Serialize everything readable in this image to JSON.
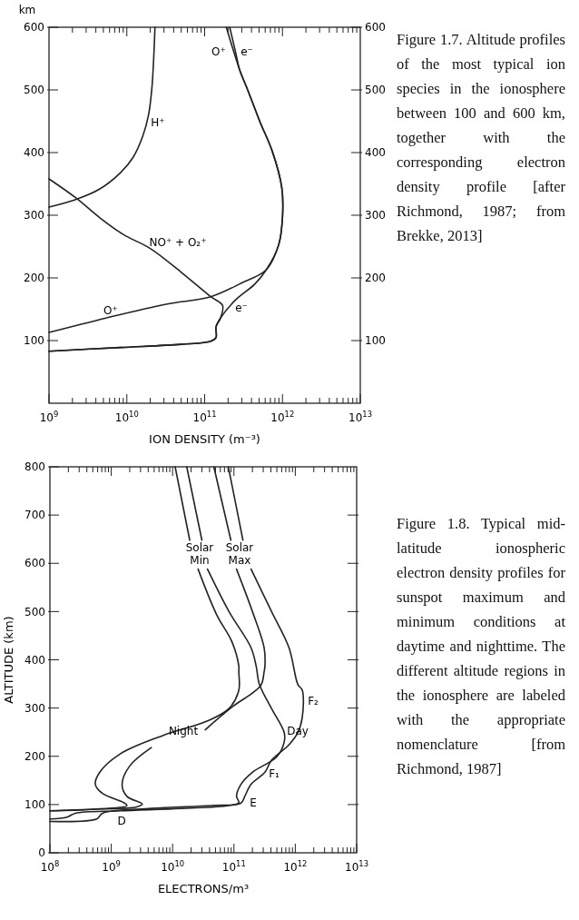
{
  "chart_data": [
    {
      "type": "line",
      "log": "x",
      "ylabel": "km",
      "xlabel": "ION DENSITY (m⁻³)",
      "xlim": [
        1000000000.0,
        10000000000000.0
      ],
      "ylim": [
        0,
        600
      ],
      "y2lim": [
        0,
        600
      ],
      "xticks": [
        {
          "value": 1000000000.0,
          "label": "10$^{9}$"
        },
        {
          "value": 10000000000.0,
          "label": "10$^{10}$"
        },
        {
          "value": 100000000000.0,
          "label": "10$^{11}$"
        },
        {
          "value": 1000000000000.0,
          "label": "10$^{12}$"
        },
        {
          "value": 10000000000000.0,
          "label": "10$^{13}$"
        },
        {
          "value": 2000000000.0,
          "label": null
        },
        {
          "value": 3000000000.0,
          "label": null
        },
        {
          "value": 4000000000.0,
          "label": null
        },
        {
          "value": 5000000000.0,
          "label": null
        },
        {
          "value": 6000000000.0,
          "label": null
        },
        {
          "value": 7000000000.0,
          "label": null
        },
        {
          "value": 8000000000.0,
          "label": null
        },
        {
          "value": 9000000000.0,
          "label": null
        },
        {
          "value": 20000000000.0,
          "label": null
        },
        {
          "value": 30000000000.0,
          "label": null
        },
        {
          "value": 40000000000.0,
          "label": null
        },
        {
          "value": 50000000000.0,
          "label": null
        },
        {
          "value": 60000000000.0,
          "label": null
        },
        {
          "value": 70000000000.0,
          "label": null
        },
        {
          "value": 80000000000.0,
          "label": null
        },
        {
          "value": 90000000000.0,
          "label": null
        },
        {
          "value": 200000000000.0,
          "label": null
        },
        {
          "value": 300000000000.0,
          "label": null
        },
        {
          "value": 400000000000.0,
          "label": null
        },
        {
          "value": 500000000000.0,
          "label": null
        },
        {
          "value": 600000000000.0,
          "label": null
        },
        {
          "value": 700000000000.0,
          "label": null
        },
        {
          "value": 800000000000.0,
          "label": null
        },
        {
          "value": 900000000000.0,
          "label": null
        },
        {
          "value": 2000000000000.0,
          "label": null
        },
        {
          "value": 3000000000000.0,
          "label": null
        },
        {
          "value": 4000000000000.0,
          "label": null
        },
        {
          "value": 5000000000000.0,
          "label": null
        },
        {
          "value": 6000000000000.0,
          "label": null
        },
        {
          "value": 7000000000000.0,
          "label": null
        },
        {
          "value": 8000000000000.0,
          "label": null
        },
        {
          "value": 9000000000000.0,
          "label": null
        }
      ],
      "yticks": [
        100,
        200,
        300,
        400,
        500,
        600
      ],
      "y2ticks": [
        100,
        200,
        300,
        400,
        500,
        600
      ],
      "series": [
        {
          "color": "#222222",
          "x": [
            1000000000.0,
            2200000000.0,
            4500000000.0,
            8300000000.0,
            12000000000.0,
            16000000000.0,
            19000000000.0,
            21000000000.0,
            23000000000.0
          ],
          "values": [
            313,
            325,
            342,
            368,
            392,
            426,
            460,
            503,
            600
          ]
        },
        {
          "color": "#222222",
          "x": [
            1000000000.0,
            2200000000.0,
            4500000000.0,
            9100000000.0,
            20000000000.0,
            50000000000.0,
            120000000000.0,
            170000000000.0,
            160000000000.0,
            140000000000.0,
            140000000000.0,
            120000000000.0,
            50000000000.0,
            8300000000.0,
            1000000000.0
          ],
          "values": [
            358,
            328,
            296,
            269,
            247,
            209,
            170,
            156,
            136,
            122,
            105,
            99,
            94,
            89,
            83
          ]
        },
        {
          "color": "#222222",
          "x": [
            1000000000.0,
            5400000000.0,
            32000000000.0,
            120000000000.0,
            300000000000.0,
            620000000000.0,
            890000000000.0,
            1000000000000.0,
            980000000000.0,
            740000000000.0,
            510000000000.0,
            360000000000.0,
            280000000000.0,
            190000000000.0
          ],
          "values": [
            113,
            136,
            158,
            170,
            192,
            213,
            252,
            296,
            344,
            402,
            450,
            499,
            533,
            600
          ]
        },
        {
          "color": "#222222",
          "x": [
            1000000000.0,
            8300000000.0,
            50000000000.0,
            120000000000.0,
            140000000000.0,
            140000000000.0,
            160000000000.0,
            250000000000.0,
            440000000000.0,
            620000000000.0,
            890000000000.0,
            1000000000000.0,
            980000000000.0,
            740000000000.0,
            510000000000.0,
            360000000000.0,
            280000000000.0,
            250000000000.0,
            210000000000.0
          ],
          "values": [
            83,
            89,
            94,
            99,
            105,
            122,
            136,
            165,
            190,
            213,
            252,
            296,
            344,
            402,
            450,
            499,
            533,
            560,
            600
          ]
        }
      ],
      "annotations": [
        "O⁺",
        "e⁻",
        "H⁺",
        "NO⁺ + O₂⁺",
        "O⁺",
        "e⁻",
        "Figure 1.7. Altitude profiles of the most typical ion species in the ionosphere between 100 and 600 km, together with the corresponding electron density profile [after Richmond, 1987; from Brekke, 2013]"
      ]
    },
    {
      "type": "line",
      "log": "x",
      "ylabel": "ALTITUDE (km)",
      "xlabel": "ELECTRONS/m³",
      "xlim": [
        100000000.0,
        10000000000000.0
      ],
      "ylim": [
        0,
        800
      ],
      "xticks": [
        {
          "value": 100000000.0,
          "label": "10$^{8}$"
        },
        {
          "value": 1000000000.0,
          "label": "10$^{9}$"
        },
        {
          "value": 10000000000.0,
          "label": "10$^{10}$"
        },
        {
          "value": 100000000000.0,
          "label": "10$^{11}$"
        },
        {
          "value": 1000000000000.0,
          "label": "10$^{12}$"
        },
        {
          "value": 10000000000000.0,
          "label": "10$^{13}$"
        },
        {
          "value": 200000000.0,
          "label": null
        },
        {
          "value": 300000000.0,
          "label": null
        },
        {
          "value": 400000000.0,
          "label": null
        },
        {
          "value": 500000000.0,
          "label": null
        },
        {
          "value": 600000000.0,
          "label": null
        },
        {
          "value": 700000000.0,
          "label": null
        },
        {
          "value": 800000000.0,
          "label": null
        },
        {
          "value": 900000000.0,
          "label": null
        },
        {
          "value": 2000000000.0,
          "label": null
        },
        {
          "value": 3000000000.0,
          "label": null
        },
        {
          "value": 4000000000.0,
          "label": null
        },
        {
          "value": 5000000000.0,
          "label": null
        },
        {
          "value": 6000000000.0,
          "label": null
        },
        {
          "value": 7000000000.0,
          "label": null
        },
        {
          "value": 8000000000.0,
          "label": null
        },
        {
          "value": 9000000000.0,
          "label": null
        },
        {
          "value": 20000000000.0,
          "label": null
        },
        {
          "value": 30000000000.0,
          "label": null
        },
        {
          "value": 40000000000.0,
          "label": null
        },
        {
          "value": 50000000000.0,
          "label": null
        },
        {
          "value": 60000000000.0,
          "label": null
        },
        {
          "value": 70000000000.0,
          "label": null
        },
        {
          "value": 80000000000.0,
          "label": null
        },
        {
          "value": 90000000000.0,
          "label": null
        },
        {
          "value": 200000000000.0,
          "label": null
        },
        {
          "value": 300000000000.0,
          "label": null
        },
        {
          "value": 400000000000.0,
          "label": null
        },
        {
          "value": 500000000000.0,
          "label": null
        },
        {
          "value": 600000000000.0,
          "label": null
        },
        {
          "value": 700000000000.0,
          "label": null
        },
        {
          "value": 800000000000.0,
          "label": null
        },
        {
          "value": 900000000000.0,
          "label": null
        },
        {
          "value": 2000000000000.0,
          "label": null
        },
        {
          "value": 3000000000000.0,
          "label": null
        },
        {
          "value": 4000000000000.0,
          "label": null
        },
        {
          "value": 5000000000000.0,
          "label": null
        },
        {
          "value": 6000000000000.0,
          "label": null
        },
        {
          "value": 7000000000000.0,
          "label": null
        },
        {
          "value": 8000000000000.0,
          "label": null
        },
        {
          "value": 9000000000000.0,
          "label": null
        }
      ],
      "yticks": [
        0,
        100,
        200,
        300,
        400,
        500,
        600,
        700,
        800
      ],
      "series": [
        {
          "color": "#222222",
          "x": [
            11000000000.0,
            19000000000.0,
            null,
            26000000000.0,
            52000000000.0,
            93000000000.0,
            120000000000.0,
            120000000000.0,
            120000000000.0,
            83000000000.0,
            38000000000.0,
            6900000000.0,
            1400000000.0,
            650000000.0,
            550000000.0,
            720000000.0,
            1600000000.0,
            1800000000.0,
            460000000.0,
            100000000.0
          ],
          "values": [
            800,
            648,
            null,
            588,
            494,
            437,
            387,
            375,
            337,
            299,
            274,
            243,
            205,
            167,
            142,
            123,
            104,
            98,
            90,
            87
          ]
        },
        {
          "color": "#222222",
          "x": [
            17000000000.0,
            30000000000.0,
            null,
            37000000000.0,
            83000000000.0,
            190000000000.0,
            230000000000.0,
            260000000000.0,
            410000000000.0,
            660000000000.0,
            660000000000.0,
            500000000000.0,
            200000000000.0,
            130000000000.0,
            110000000000.0,
            120000000000.0,
            83000000000.0,
            14000000000.0,
            1400000000.0,
            260000000.0,
            190000000.0,
            100000000.0
          ],
          "values": [
            800,
            648,
            null,
            588,
            500,
            425,
            387,
            349,
            299,
            249,
            230,
            199,
            167,
            142,
            117,
            104,
            98,
            92,
            87,
            82,
            74,
            70
          ]
        },
        {
          "color": "#222222",
          "x": [
            47000000000.0,
            89000000000.0,
            null,
            110000000000.0,
            200000000000.0,
            310000000000.0,
            320000000000.0,
            310000000000.0,
            280000000000.0,
            200000000000.0,
            100000000000.0,
            34000000000.0,
            null,
            4500000000.0,
            2000000000.0,
            1500000000.0,
            1800000000.0,
            3200000000.0,
            2600000000.0,
            460000000.0,
            100000000.0
          ],
          "values": [
            800,
            648,
            null,
            588,
            500,
            425,
            387,
            375,
            349,
            331,
            305,
            255,
            null,
            218,
            180,
            142,
            117,
            101,
            95,
            90,
            87
          ]
        },
        {
          "color": "#222222",
          "x": [
            81000000000.0,
            140000000000.0,
            null,
            190000000000.0,
            410000000000.0,
            790000000000.0,
            1100000000000.0,
            1300000000000.0,
            1300000000000.0,
            1100000000000.0,
            790000000000.0,
            410000000000.0,
            320000000000.0,
            190000000000.0,
            150000000000.0,
            130000000000.0,
            43000000000.0,
            4500000000.0,
            720000000.0,
            580000000.0,
            100000000.0
          ],
          "values": [
            800,
            648,
            null,
            588,
            500,
            425,
            349,
            337,
            281,
            249,
            224,
            192,
            167,
            142,
            117,
            103,
            98,
            92,
            82,
            70,
            65
          ]
        }
      ],
      "annotations": [
        "Solar\nMin",
        "Solar\nMax",
        "Night",
        "Day",
        "F₂",
        "F₁",
        "E",
        "D",
        "Figure 1.8. Typical mid-latitude ionospheric electron density profiles for sunspot maximum and minimum conditions at daytime and nighttime. The different altitude regions in the ionosphere are labeled with the appropriate nomenclature [from Richmond, 1987]"
      ]
    }
  ]
}
